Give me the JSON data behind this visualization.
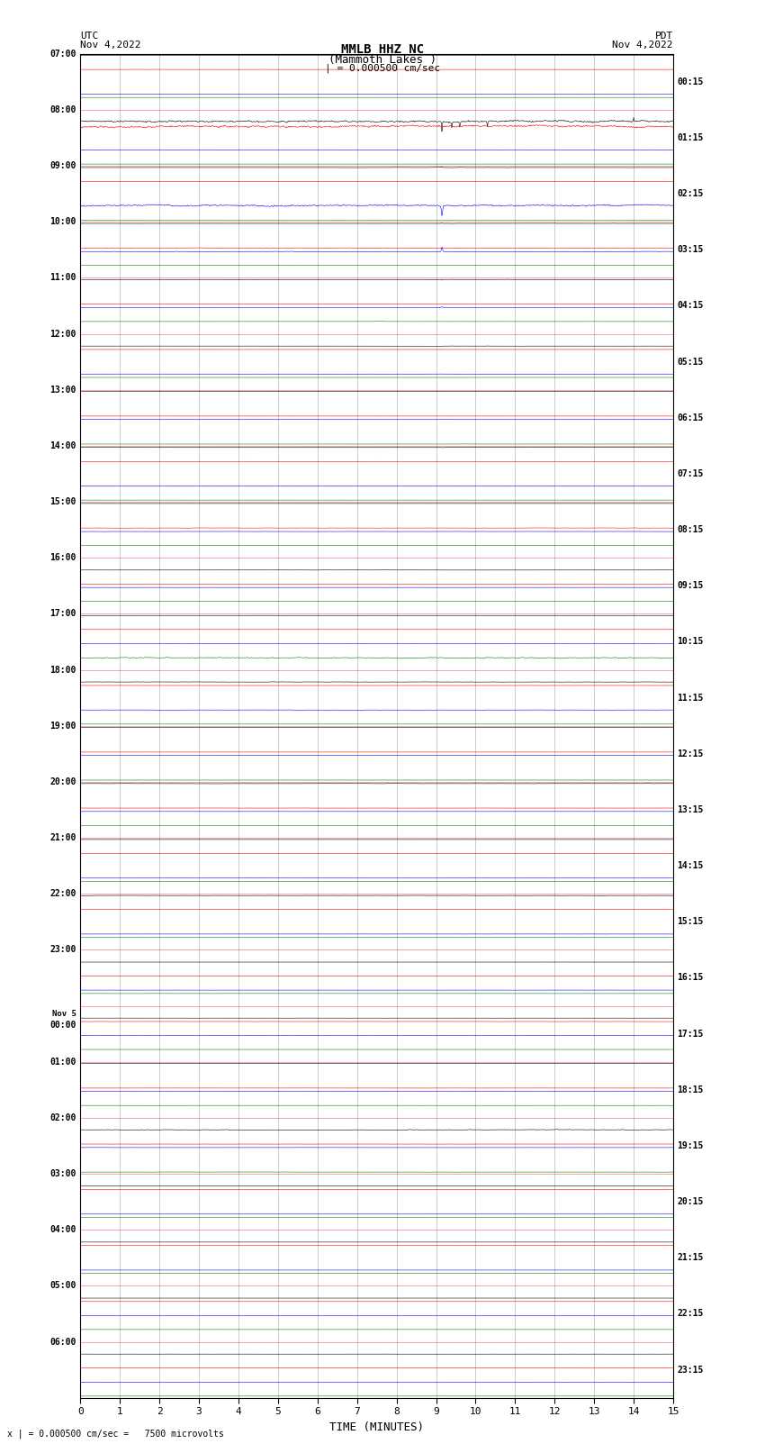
{
  "title_line1": "MMLB HHZ NC",
  "title_line2": "(Mammoth Lakes )",
  "scale_label": "| = 0.000500 cm/sec",
  "left_header1": "UTC",
  "left_header2": "Nov 4,2022",
  "right_header1": "PDT",
  "right_header2": "Nov 4,2022",
  "bottom_label": "TIME (MINUTES)",
  "footer": "x | = 0.000500 cm/sec =   7500 microvolts",
  "x_ticks": [
    0,
    1,
    2,
    3,
    4,
    5,
    6,
    7,
    8,
    9,
    10,
    11,
    12,
    13,
    14,
    15
  ],
  "left_times": [
    "07:00",
    "08:00",
    "09:00",
    "10:00",
    "11:00",
    "12:00",
    "13:00",
    "14:00",
    "15:00",
    "16:00",
    "17:00",
    "18:00",
    "19:00",
    "20:00",
    "21:00",
    "22:00",
    "23:00",
    "Nov 5\n00:00",
    "01:00",
    "02:00",
    "03:00",
    "04:00",
    "05:00",
    "06:00"
  ],
  "right_times": [
    "00:15",
    "01:15",
    "02:15",
    "03:15",
    "04:15",
    "05:15",
    "06:15",
    "07:15",
    "08:15",
    "09:15",
    "10:15",
    "11:15",
    "12:15",
    "13:15",
    "14:15",
    "15:15",
    "16:15",
    "17:15",
    "18:15",
    "19:15",
    "20:15",
    "21:15",
    "22:15",
    "23:15"
  ],
  "n_time_slots": 24,
  "colors_cycle": [
    "black",
    "red",
    "blue",
    "green"
  ],
  "bg_color": "#ffffff",
  "seed": 42,
  "n_pts": 1500
}
